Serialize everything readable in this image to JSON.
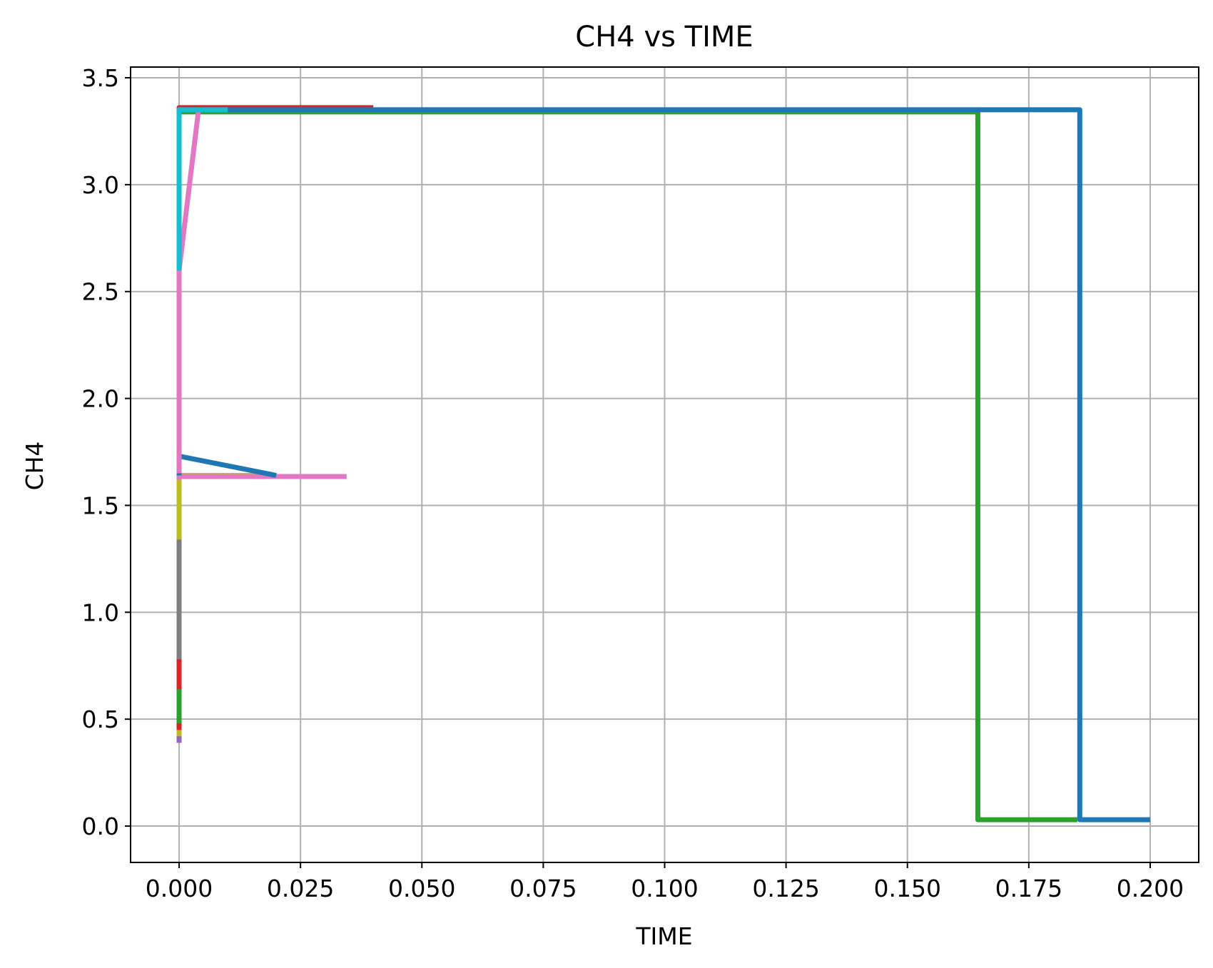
{
  "chart_data": {
    "type": "line",
    "title": "CH4 vs TIME",
    "xlabel": "TIME",
    "ylabel": "CH4",
    "xlim": [
      -0.01,
      0.21
    ],
    "ylim": [
      -0.17,
      3.55
    ],
    "xticks": [
      0.0,
      0.025,
      0.05,
      0.075,
      0.1,
      0.125,
      0.15,
      0.175,
      0.2
    ],
    "xtick_labels": [
      "0.000",
      "0.025",
      "0.050",
      "0.075",
      "0.100",
      "0.125",
      "0.150",
      "0.175",
      "0.200"
    ],
    "yticks": [
      0.0,
      0.5,
      1.0,
      1.5,
      2.0,
      2.5,
      3.0,
      3.5
    ],
    "ytick_labels": [
      "0.0",
      "0.5",
      "1.0",
      "1.5",
      "2.0",
      "2.5",
      "3.0",
      "3.5"
    ],
    "grid": true,
    "series": [
      {
        "color": "#9467bd",
        "x": [
          0.0,
          0.0,
          0.02
        ],
        "y": [
          0.39,
          1.64,
          1.64
        ]
      },
      {
        "color": "#bcbd22",
        "x": [
          0.0,
          0.0,
          0.02
        ],
        "y": [
          0.42,
          1.64,
          1.64
        ]
      },
      {
        "color": "#d62728",
        "x": [
          0.0,
          0.0,
          0.04
        ],
        "y": [
          0.45,
          3.36,
          3.36
        ]
      },
      {
        "color": "#2ca02c",
        "x": [
          0.0,
          0.0,
          0.1645,
          0.1645,
          0.185
        ],
        "y": [
          0.48,
          3.34,
          3.34,
          0.03,
          0.03
        ]
      },
      {
        "color": "#d62728",
        "x": [
          0.0,
          0.0,
          0.02
        ],
        "y": [
          0.64,
          1.64,
          1.64
        ]
      },
      {
        "color": "#7f7f7f",
        "x": [
          0.0,
          0.0,
          0.02
        ],
        "y": [
          0.78,
          1.64,
          1.64
        ]
      },
      {
        "color": "#bcbd22",
        "x": [
          0.0,
          0.0,
          0.02
        ],
        "y": [
          1.34,
          1.64,
          1.64
        ]
      },
      {
        "color": "#e377c2",
        "x": [
          0.0,
          0.0,
          0.0345
        ],
        "y": [
          1.62,
          1.635,
          1.635
        ]
      },
      {
        "color": "#1f77b4",
        "x": [
          0.0,
          0.0,
          0.02
        ],
        "y": [
          1.64,
          1.73,
          1.64
        ]
      },
      {
        "color": "#e377c2",
        "x": [
          0.0,
          0.0,
          0.004
        ],
        "y": [
          1.65,
          2.6,
          3.35
        ]
      },
      {
        "color": "#1f77b4",
        "x": [
          0.0,
          0.0,
          0.1855,
          0.1855,
          0.2
        ],
        "y": [
          2.6,
          3.35,
          3.35,
          0.03,
          0.03
        ]
      },
      {
        "color": "#17becf",
        "x": [
          0.0,
          0.0,
          0.01
        ],
        "y": [
          2.6,
          3.35,
          3.35
        ]
      }
    ]
  }
}
